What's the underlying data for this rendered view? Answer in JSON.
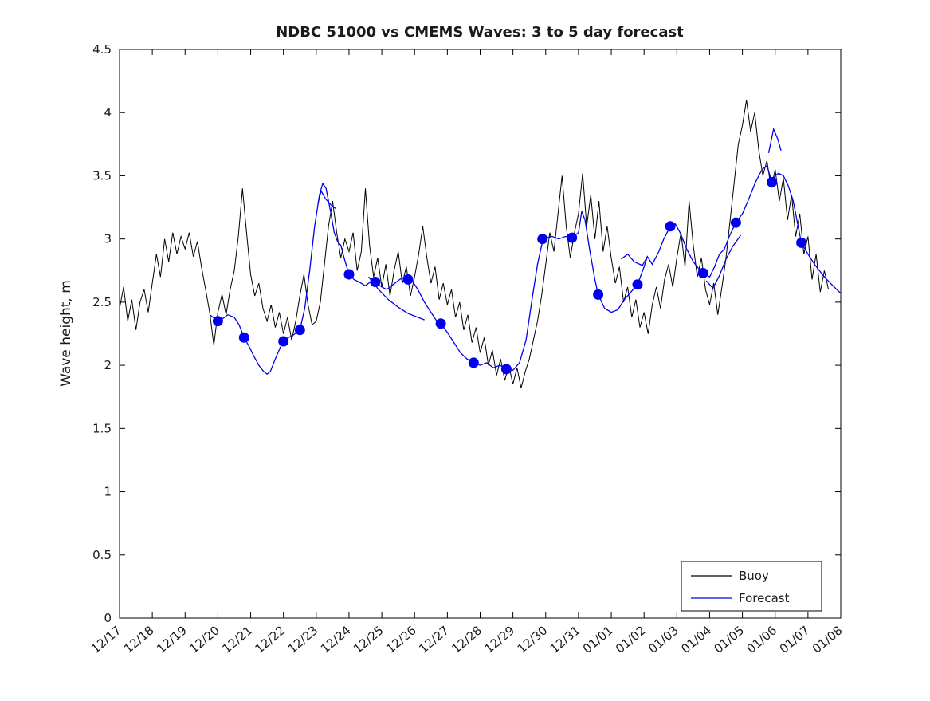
{
  "figure": {
    "title": "NDBC 51000 vs CMEMS Waves: 3 to 5 day forecast"
  },
  "chart_data": {
    "type": "line",
    "title": "NDBC 51000 vs CMEMS Waves: 3 to 5 day forecast",
    "xlabel": "",
    "ylabel": "Wave height, m",
    "xlim": [
      0,
      22
    ],
    "ylim": [
      0,
      4.5
    ],
    "grid": false,
    "legend_position": "southeast-inside",
    "x_unit": "days since 12/17",
    "x_tick_labels": [
      "12/17",
      "12/18",
      "12/19",
      "12/20",
      "12/21",
      "12/22",
      "12/23",
      "12/24",
      "12/25",
      "12/26",
      "12/27",
      "12/28",
      "12/29",
      "12/30",
      "12/31",
      "01/01",
      "01/02",
      "01/03",
      "01/04",
      "01/05",
      "01/06",
      "01/07",
      "01/08"
    ],
    "y_tick_values": [
      0,
      0.5,
      1,
      1.5,
      2,
      2.5,
      3,
      3.5,
      4,
      4.5
    ],
    "y_tick_labels": [
      "0",
      "0.5",
      "1",
      "1.5",
      "2",
      "2.5",
      "3",
      "3.5",
      "4",
      "4.5"
    ],
    "legend": [
      {
        "label": "Buoy",
        "color": "#000000"
      },
      {
        "label": "Forecast",
        "color": "#0000ee"
      }
    ],
    "series": [
      {
        "name": "Buoy",
        "type": "line",
        "color": "#000000",
        "x_start": 0,
        "x_step": 0.125,
        "values": [
          2.45,
          2.62,
          2.35,
          2.52,
          2.28,
          2.5,
          2.6,
          2.42,
          2.65,
          2.88,
          2.7,
          3.0,
          2.82,
          3.05,
          2.88,
          3.02,
          2.92,
          3.05,
          2.86,
          2.98,
          2.78,
          2.6,
          2.42,
          2.16,
          2.42,
          2.56,
          2.4,
          2.6,
          2.75,
          3.02,
          3.4,
          3.05,
          2.72,
          2.55,
          2.65,
          2.45,
          2.35,
          2.48,
          2.3,
          2.42,
          2.25,
          2.38,
          2.2,
          2.35,
          2.55,
          2.72,
          2.48,
          2.32,
          2.35,
          2.5,
          2.8,
          3.1,
          3.3,
          3.05,
          2.85,
          3.0,
          2.9,
          3.05,
          2.75,
          2.9,
          3.4,
          2.95,
          2.7,
          2.85,
          2.62,
          2.8,
          2.55,
          2.75,
          2.9,
          2.65,
          2.78,
          2.55,
          2.7,
          2.88,
          3.1,
          2.85,
          2.65,
          2.78,
          2.52,
          2.65,
          2.48,
          2.6,
          2.38,
          2.5,
          2.28,
          2.4,
          2.18,
          2.3,
          2.1,
          2.22,
          2.0,
          2.12,
          1.92,
          2.05,
          1.88,
          2.0,
          1.85,
          1.98,
          1.82,
          1.95,
          2.05,
          2.2,
          2.35,
          2.55,
          2.8,
          3.05,
          2.9,
          3.2,
          3.5,
          3.1,
          2.85,
          3.05,
          3.2,
          3.52,
          3.1,
          3.35,
          3.0,
          3.3,
          2.9,
          3.1,
          2.85,
          2.65,
          2.78,
          2.5,
          2.62,
          2.38,
          2.52,
          2.3,
          2.42,
          2.25,
          2.48,
          2.62,
          2.45,
          2.68,
          2.8,
          2.62,
          2.85,
          3.05,
          2.78,
          3.3,
          2.95,
          2.7,
          2.85,
          2.6,
          2.48,
          2.65,
          2.4,
          2.62,
          2.85,
          3.15,
          3.45,
          3.75,
          3.9,
          4.1,
          3.85,
          4.0,
          3.7,
          3.5,
          3.62,
          3.4,
          3.55,
          3.3,
          3.48,
          3.15,
          3.35,
          3.02,
          3.2,
          2.88,
          3.02,
          2.68,
          2.88,
          2.58,
          2.75,
          2.6
        ]
      },
      {
        "name": "Forecast",
        "type": "line",
        "color": "#0000ee",
        "points": [
          [
            2.75,
            2.4
          ],
          [
            2.9,
            2.37
          ],
          [
            3.0,
            2.35
          ],
          [
            3.15,
            2.37
          ],
          [
            3.3,
            2.4
          ],
          [
            3.5,
            2.38
          ],
          [
            3.65,
            2.32
          ],
          [
            3.8,
            2.22
          ],
          [
            3.95,
            2.15
          ],
          [
            4.1,
            2.07
          ],
          [
            4.25,
            2.0
          ],
          [
            4.4,
            1.95
          ],
          [
            4.5,
            1.93
          ],
          [
            4.6,
            1.95
          ],
          [
            4.75,
            2.05
          ],
          [
            4.9,
            2.14
          ],
          [
            5.0,
            2.19
          ],
          [
            5.15,
            2.22
          ],
          [
            5.3,
            2.24
          ],
          [
            5.5,
            2.28
          ],
          [
            5.65,
            2.45
          ],
          [
            5.8,
            2.75
          ],
          [
            5.95,
            3.1
          ],
          [
            6.1,
            3.35
          ],
          [
            6.2,
            3.44
          ],
          [
            6.3,
            3.4
          ],
          [
            6.45,
            3.2
          ],
          [
            6.55,
            3.05
          ],
          [
            6.65,
            2.98
          ],
          [
            6.75,
            2.95
          ],
          [
            6.85,
            2.85
          ],
          [
            7.0,
            2.72
          ],
          [
            7.15,
            2.68
          ],
          [
            7.3,
            2.66
          ],
          [
            7.5,
            2.63
          ],
          [
            7.65,
            2.66
          ],
          [
            7.8,
            2.66
          ],
          [
            8.0,
            2.62
          ],
          [
            8.15,
            2.6
          ],
          [
            8.35,
            2.64
          ],
          [
            8.55,
            2.68
          ],
          [
            8.7,
            2.7
          ],
          [
            8.9,
            2.68
          ],
          [
            9.1,
            2.6
          ],
          [
            9.3,
            2.5
          ],
          [
            9.5,
            2.42
          ],
          [
            9.65,
            2.36
          ],
          [
            9.8,
            2.33
          ],
          [
            10.0,
            2.26
          ],
          [
            10.2,
            2.18
          ],
          [
            10.4,
            2.1
          ],
          [
            10.6,
            2.05
          ],
          [
            10.8,
            2.02
          ],
          [
            11.0,
            2.0
          ],
          [
            11.2,
            2.02
          ],
          [
            11.4,
            1.98
          ],
          [
            11.6,
            2.0
          ],
          [
            11.8,
            1.97
          ],
          [
            12.0,
            1.96
          ],
          [
            12.2,
            2.02
          ],
          [
            12.4,
            2.2
          ],
          [
            12.6,
            2.55
          ],
          [
            12.75,
            2.8
          ],
          [
            12.9,
            2.98
          ],
          [
            13.0,
            3.01
          ],
          [
            13.2,
            3.02
          ],
          [
            13.4,
            3.0
          ],
          [
            13.6,
            3.02
          ],
          [
            13.8,
            3.01
          ],
          [
            14.0,
            3.05
          ],
          [
            14.1,
            3.22
          ],
          [
            14.2,
            3.15
          ],
          [
            14.35,
            2.9
          ],
          [
            14.5,
            2.68
          ],
          [
            14.6,
            2.56
          ],
          [
            14.8,
            2.45
          ],
          [
            15.0,
            2.42
          ],
          [
            15.2,
            2.44
          ],
          [
            15.4,
            2.52
          ],
          [
            15.6,
            2.58
          ],
          [
            15.8,
            2.64
          ],
          [
            16.0,
            2.78
          ],
          [
            16.1,
            2.86
          ],
          [
            16.25,
            2.8
          ],
          [
            16.45,
            2.9
          ],
          [
            16.6,
            3.0
          ],
          [
            16.8,
            3.1
          ],
          [
            16.95,
            3.12
          ],
          [
            17.1,
            3.05
          ],
          [
            17.3,
            2.92
          ],
          [
            17.5,
            2.82
          ],
          [
            17.65,
            2.77
          ],
          [
            17.8,
            2.73
          ],
          [
            18.0,
            2.7
          ],
          [
            18.15,
            2.78
          ],
          [
            18.3,
            2.88
          ],
          [
            18.45,
            2.92
          ],
          [
            18.6,
            3.02
          ],
          [
            18.8,
            3.13
          ],
          [
            19.0,
            3.2
          ],
          [
            19.2,
            3.32
          ],
          [
            19.4,
            3.45
          ],
          [
            19.6,
            3.55
          ],
          [
            19.75,
            3.58
          ],
          [
            19.9,
            3.45
          ],
          [
            20.0,
            3.5
          ],
          [
            20.1,
            3.52
          ],
          [
            20.25,
            3.5
          ],
          [
            20.4,
            3.42
          ],
          [
            20.55,
            3.3
          ],
          [
            20.7,
            3.1
          ],
          [
            20.8,
            2.97
          ],
          [
            21.0,
            2.88
          ],
          [
            21.2,
            2.8
          ],
          [
            21.5,
            2.7
          ],
          [
            21.8,
            2.62
          ],
          [
            22.0,
            2.57
          ]
        ],
        "extra_segments": [
          [
            [
              6.05,
              3.28
            ],
            [
              6.15,
              3.38
            ],
            [
              6.28,
              3.32
            ],
            [
              6.45,
              3.27
            ],
            [
              6.6,
              3.24
            ]
          ],
          [
            [
              7.6,
              2.7
            ],
            [
              7.9,
              2.6
            ],
            [
              8.2,
              2.52
            ],
            [
              8.5,
              2.46
            ],
            [
              8.8,
              2.41
            ],
            [
              9.1,
              2.38
            ],
            [
              9.3,
              2.36
            ]
          ],
          [
            [
              15.3,
              2.84
            ],
            [
              15.5,
              2.88
            ],
            [
              15.7,
              2.82
            ],
            [
              15.95,
              2.79
            ],
            [
              16.1,
              2.86
            ]
          ],
          [
            [
              17.9,
              2.67
            ],
            [
              18.1,
              2.61
            ],
            [
              18.3,
              2.71
            ],
            [
              18.5,
              2.84
            ],
            [
              18.7,
              2.94
            ],
            [
              18.95,
              3.03
            ]
          ],
          [
            [
              19.8,
              3.68
            ],
            [
              19.95,
              3.87
            ],
            [
              20.08,
              3.79
            ],
            [
              20.18,
              3.7
            ]
          ]
        ],
        "markers": [
          [
            3.0,
            2.35
          ],
          [
            3.8,
            2.22
          ],
          [
            5.0,
            2.19
          ],
          [
            5.5,
            2.28
          ],
          [
            7.0,
            2.72
          ],
          [
            7.8,
            2.66
          ],
          [
            8.8,
            2.68
          ],
          [
            9.8,
            2.33
          ],
          [
            10.8,
            2.02
          ],
          [
            11.8,
            1.97
          ],
          [
            12.9,
            3.0
          ],
          [
            13.8,
            3.01
          ],
          [
            14.6,
            2.56
          ],
          [
            15.8,
            2.64
          ],
          [
            16.8,
            3.1
          ],
          [
            17.8,
            2.73
          ],
          [
            18.8,
            3.13
          ],
          [
            19.9,
            3.45
          ],
          [
            20.8,
            2.97
          ]
        ]
      }
    ]
  }
}
